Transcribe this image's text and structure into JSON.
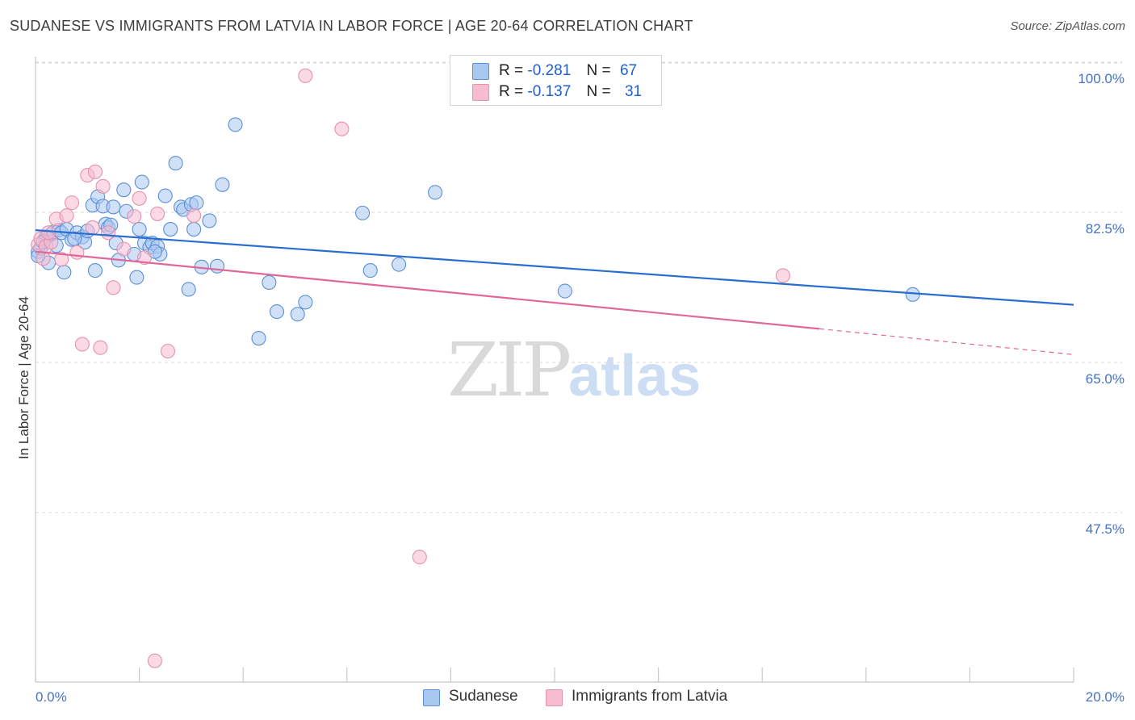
{
  "title": "SUDANESE VS IMMIGRANTS FROM LATVIA IN LABOR FORCE | AGE 20-64 CORRELATION CHART",
  "source": "Source: ZipAtlas.com",
  "watermark": {
    "part1": "ZIP",
    "part2": "atlas"
  },
  "legend": {
    "rows": [
      {
        "r_label": "R =",
        "r_value": "-0.281",
        "n_label": "N =",
        "n_value": "67"
      },
      {
        "r_label": "R =",
        "r_value": "-0.137",
        "n_label": "N =",
        "n_value": "31"
      }
    ]
  },
  "bottom_legend": [
    "Sudanese",
    "Immigrants from Latvia"
  ],
  "colors": {
    "sudanese_fill": "#a9c8f0",
    "sudanese_stroke": "#5b8fd6",
    "sudanese_line": "#2a6dd0",
    "latvia_fill": "#f7bcd0",
    "latvia_stroke": "#e691b0",
    "latvia_line": "#e0679a",
    "tick_text": "#4472c4",
    "grid": "#d9d9d9"
  },
  "chart_data": {
    "type": "scatter",
    "xlabel": "",
    "ylabel": "In Labor Force | Age 20-64",
    "xlim": [
      0,
      20
    ],
    "ylim": [
      30,
      102
    ],
    "x_tick_labels": [
      {
        "value": 0,
        "label": "0.0%"
      },
      {
        "value": 20,
        "label": "20.0%"
      }
    ],
    "y_tick_labels": [
      {
        "value": 100,
        "label": "100.0%"
      },
      {
        "value": 82.5,
        "label": "82.5%"
      },
      {
        "value": 65,
        "label": "65.0%"
      },
      {
        "value": 47.5,
        "label": "47.5%"
      }
    ],
    "grid": true,
    "series": [
      {
        "name": "Sudanese",
        "trend": {
          "x": [
            0,
            20
          ],
          "y": [
            82.3,
            73.6
          ],
          "dashed_from": null
        },
        "points": [
          [
            0.05,
            79.8
          ],
          [
            0.1,
            80.2
          ],
          [
            0.15,
            81.0
          ],
          [
            0.2,
            81.5
          ],
          [
            0.3,
            81.8
          ],
          [
            0.35,
            82.1
          ],
          [
            0.45,
            82.3
          ],
          [
            0.5,
            82.0
          ],
          [
            0.6,
            82.4
          ],
          [
            0.7,
            81.2
          ],
          [
            0.8,
            82.0
          ],
          [
            0.9,
            81.5
          ],
          [
            0.95,
            80.9
          ],
          [
            1.0,
            82.2
          ],
          [
            1.1,
            85.2
          ],
          [
            1.2,
            86.2
          ],
          [
            1.3,
            85.1
          ],
          [
            1.35,
            83.0
          ],
          [
            1.4,
            82.6
          ],
          [
            1.5,
            85.0
          ],
          [
            1.55,
            80.8
          ],
          [
            1.6,
            78.8
          ],
          [
            1.7,
            87.0
          ],
          [
            1.75,
            84.5
          ],
          [
            1.9,
            79.5
          ],
          [
            1.95,
            76.8
          ],
          [
            2.0,
            82.4
          ],
          [
            2.05,
            87.9
          ],
          [
            2.1,
            80.8
          ],
          [
            2.2,
            80.3
          ],
          [
            2.25,
            80.8
          ],
          [
            2.35,
            80.4
          ],
          [
            2.4,
            79.5
          ],
          [
            2.5,
            86.3
          ],
          [
            2.6,
            82.4
          ],
          [
            2.7,
            90.1
          ],
          [
            2.8,
            85.0
          ],
          [
            2.85,
            84.7
          ],
          [
            2.95,
            75.4
          ],
          [
            3.0,
            85.3
          ],
          [
            3.05,
            82.4
          ],
          [
            3.1,
            85.5
          ],
          [
            3.2,
            78.0
          ],
          [
            3.35,
            83.4
          ],
          [
            3.5,
            78.1
          ],
          [
            3.6,
            87.6
          ],
          [
            3.85,
            94.6
          ],
          [
            4.3,
            69.7
          ],
          [
            4.5,
            76.2
          ],
          [
            4.65,
            72.8
          ],
          [
            5.05,
            72.5
          ],
          [
            5.2,
            73.9
          ],
          [
            6.3,
            84.3
          ],
          [
            6.45,
            77.6
          ],
          [
            7.0,
            78.3
          ],
          [
            7.7,
            86.7
          ],
          [
            10.2,
            75.2
          ],
          [
            16.9,
            74.8
          ],
          [
            0.25,
            78.5
          ],
          [
            0.4,
            80.5
          ],
          [
            0.55,
            77.4
          ],
          [
            0.75,
            81.3
          ],
          [
            1.15,
            77.6
          ],
          [
            1.45,
            82.9
          ],
          [
            2.3,
            79.8
          ],
          [
            0.15,
            80.9
          ],
          [
            0.05,
            79.3
          ]
        ]
      },
      {
        "name": "Immigrants from Latvia",
        "trend": {
          "x": [
            0,
            15.1
          ],
          "y": [
            79.8,
            70.8
          ],
          "dashed_to": [
            20,
            67.8
          ]
        },
        "points": [
          [
            0.05,
            80.6
          ],
          [
            0.1,
            81.3
          ],
          [
            0.15,
            79.0
          ],
          [
            0.2,
            80.4
          ],
          [
            0.3,
            80.9
          ],
          [
            0.4,
            83.6
          ],
          [
            0.5,
            78.9
          ],
          [
            0.6,
            84.0
          ],
          [
            0.7,
            85.5
          ],
          [
            0.8,
            79.7
          ],
          [
            0.9,
            69.0
          ],
          [
            1.0,
            88.7
          ],
          [
            1.1,
            82.6
          ],
          [
            1.15,
            89.1
          ],
          [
            1.25,
            68.6
          ],
          [
            1.3,
            87.4
          ],
          [
            1.4,
            82.0
          ],
          [
            1.5,
            75.6
          ],
          [
            1.7,
            80.1
          ],
          [
            1.9,
            83.9
          ],
          [
            2.0,
            86.0
          ],
          [
            2.1,
            79.1
          ],
          [
            2.3,
            32.1
          ],
          [
            2.35,
            84.2
          ],
          [
            2.55,
            68.2
          ],
          [
            3.05,
            84.0
          ],
          [
            5.2,
            100.3
          ],
          [
            5.9,
            94.1
          ],
          [
            7.4,
            44.2
          ],
          [
            14.4,
            77.0
          ],
          [
            0.25,
            82.0
          ]
        ]
      }
    ]
  }
}
